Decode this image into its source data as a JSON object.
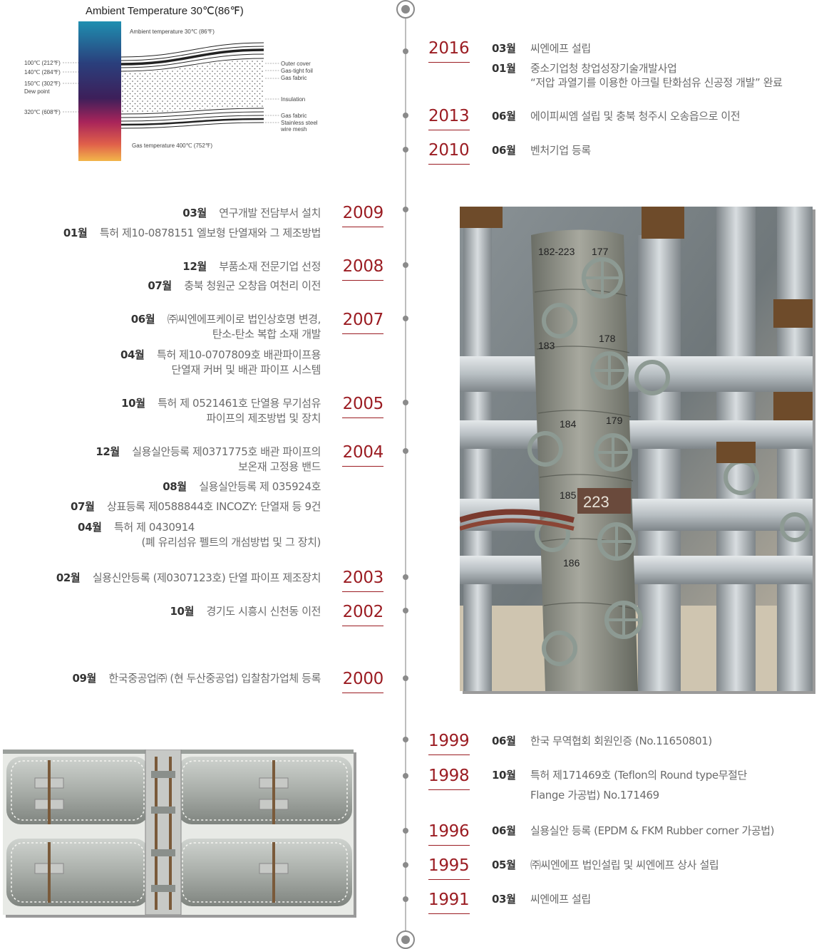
{
  "diagram": {
    "title": "Ambient Temperature 30℃(86℉)",
    "top_label": "Ambient temperature 30℃ (86℉)",
    "bottom_label": "Gas temperature 400℃ (752℉)",
    "left_labels": [
      "100℃ (212℉)",
      "140℃ (284℉)",
      "150℃ (302℉)",
      "Dew point",
      "320℃ (608℉)"
    ],
    "right_labels": [
      "Outer cover",
      "Gas-tight foil",
      "Gas fabric",
      "Insulation",
      "Gas fabric",
      "Stainless steel",
      "wire mesh"
    ]
  },
  "timeline": {
    "right_top": [
      {
        "year": "2016",
        "entries": [
          {
            "month": "03월",
            "lines": [
              "씨엔에프 설립"
            ]
          },
          {
            "month": "01월",
            "lines": [
              "중소기업청 창업성장기술개발사업",
              "“저압 과열기를 이용한 아크릴 탄화섬유 신공정 개발” 완료"
            ]
          }
        ]
      },
      {
        "year": "2013",
        "entries": [
          {
            "month": "06월",
            "lines": [
              "에이피씨엠 설립 및 충북 청주시 오송읍으로 이전"
            ]
          }
        ]
      },
      {
        "year": "2010",
        "entries": [
          {
            "month": "06월",
            "lines": [
              "벤처기업 등록"
            ]
          }
        ]
      }
    ],
    "left": [
      {
        "year": "2009",
        "entries": [
          {
            "month": "03월",
            "lines": [
              "연구개발 전담부서 설치"
            ]
          },
          {
            "month": "01월",
            "lines": [
              "특허 제10-0878151 엘보형 단열재와 그 제조방법"
            ]
          }
        ]
      },
      {
        "year": "2008",
        "entries": [
          {
            "month": "12월",
            "lines": [
              "부품소재 전문기업 선정"
            ]
          },
          {
            "month": "07월",
            "lines": [
              "충북 청원군 오창읍 여천리 이전"
            ]
          }
        ]
      },
      {
        "year": "2007",
        "entries": [
          {
            "month": "06월",
            "lines": [
              "㈜씨엔에프케이로 법인상호명 변경,",
              "탄소-탄소 복합 소재 개발"
            ]
          },
          {
            "month": "04월",
            "lines": [
              "특허 제10-0707809호 배관파이프용",
              "단열재 커버 및 배관 파이프 시스템"
            ]
          }
        ]
      },
      {
        "year": "2005",
        "entries": [
          {
            "month": "10월",
            "lines": [
              "특허 제 0521461호 단열용 무기섬유",
              "파이프의 제조방법 및 장치"
            ]
          }
        ]
      },
      {
        "year": "2004",
        "entries": [
          {
            "month": "12월",
            "lines": [
              "실용실안등록 제0371775호 배관 파이프의",
              "보온재 고정용 밴드"
            ]
          },
          {
            "month": "08월",
            "lines": [
              "실용실안등록 제 035924호"
            ]
          },
          {
            "month": "07월",
            "lines": [
              "상표등록 제0588844호 INCOZY: 단열재 등 9건"
            ]
          },
          {
            "month": "04월",
            "lines": [
              "특허 제 0430914",
              "(폐 유리섬유 펠트의 개섬방법 및 그 장치)"
            ]
          }
        ]
      },
      {
        "year": "2003",
        "entries": [
          {
            "month": "02월",
            "lines": [
              "실용신안등록 (제0307123호) 단열 파이프 제조장치"
            ]
          }
        ]
      },
      {
        "year": "2002",
        "entries": [
          {
            "month": "10월",
            "lines": [
              "경기도 시흥시 신천동 이전"
            ]
          }
        ]
      },
      {
        "year": "2000",
        "entries": [
          {
            "month": "09월",
            "lines": [
              "한국중공업㈜ (현 두산중공업) 입찰참가업체 등록"
            ]
          }
        ]
      }
    ],
    "right_bottom": [
      {
        "year": "1999",
        "entries": [
          {
            "month": "06월",
            "lines": [
              "한국 무역협회 회원인증 (No.11650801)"
            ]
          }
        ]
      },
      {
        "year": "1998",
        "entries": [
          {
            "month": "10월",
            "lines": [
              "특허 제171469호 (Teflon의 Round type무절단",
              "Flange 가공법) No.171469"
            ]
          }
        ]
      },
      {
        "year": "1996",
        "entries": [
          {
            "month": "06월",
            "lines": [
              "실용실안 등록 (EPDM & FKM Rubber corner 가공법)"
            ]
          }
        ]
      },
      {
        "year": "1995",
        "entries": [
          {
            "month": "05월",
            "lines": [
              "㈜씨엔에프 법인설립 및 씨엔에프 상사 설립"
            ]
          }
        ]
      },
      {
        "year": "1991",
        "entries": [
          {
            "month": "03월",
            "lines": [
              "씨엔에프 설립"
            ]
          }
        ]
      }
    ]
  },
  "photo_labels": {
    "tag_1": "182-223",
    "tag_2": "177",
    "tag_3": "183",
    "tag_4": "178",
    "tag_5": "184",
    "tag_6": "179",
    "tag_7": "185",
    "tag_8": "223",
    "tag_9": "186"
  },
  "colors": {
    "accent": "#9b1c22",
    "line": "#bdbdbd",
    "dot": "#8a8a8a"
  }
}
